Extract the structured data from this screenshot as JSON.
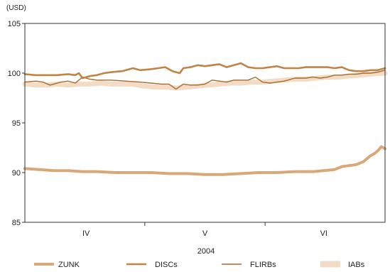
{
  "chart_data": {
    "type": "line",
    "unit_label": "(USD)",
    "xlabel": "2004",
    "ylim": [
      85,
      105
    ],
    "yticks": [
      85,
      90,
      95,
      100,
      105
    ],
    "grid": false,
    "legend_position": "bottom",
    "x_range": [
      0,
      100
    ],
    "months": [
      {
        "label": "IV",
        "center": 17
      },
      {
        "label": "V",
        "center": 50
      },
      {
        "label": "VI",
        "center": 83
      }
    ],
    "month_dividers": [
      33.3,
      66.7
    ],
    "series": [
      {
        "name": "ZUNK",
        "color": "#d9a878",
        "style": "thick",
        "x": [
          0,
          4,
          8,
          12,
          16,
          20,
          25,
          30,
          35,
          40,
          45,
          50,
          55,
          60,
          65,
          70,
          75,
          80,
          83,
          86,
          88,
          90,
          92,
          94,
          95,
          96,
          97,
          98,
          99,
          100
        ],
        "y": [
          90.4,
          90.3,
          90.2,
          90.2,
          90.1,
          90.1,
          90.0,
          90.0,
          90.0,
          89.9,
          89.9,
          89.8,
          89.8,
          89.9,
          90.0,
          90.0,
          90.1,
          90.1,
          90.2,
          90.3,
          90.6,
          90.7,
          90.8,
          91.1,
          91.4,
          91.7,
          91.9,
          92.2,
          92.6,
          92.4
        ]
      },
      {
        "name": "DISCs",
        "color": "#c08446",
        "style": "medium",
        "x": [
          0,
          3,
          6,
          9,
          12,
          14,
          15,
          16,
          18,
          20,
          22,
          24,
          27,
          30,
          32,
          35,
          37,
          39,
          41,
          43,
          44,
          46,
          48,
          50,
          52,
          54,
          56,
          58,
          60,
          62,
          64,
          66,
          68,
          70,
          72,
          74,
          76,
          78,
          80,
          82,
          84,
          86,
          88,
          90,
          92,
          94,
          96,
          98,
          100
        ],
        "y": [
          99.9,
          99.8,
          99.8,
          99.8,
          99.9,
          99.8,
          100.0,
          99.5,
          99.7,
          99.8,
          100.0,
          100.1,
          100.2,
          100.5,
          100.3,
          100.4,
          100.5,
          100.6,
          100.2,
          100.0,
          100.5,
          100.6,
          100.8,
          100.7,
          100.8,
          100.9,
          100.6,
          100.8,
          101.0,
          100.6,
          100.5,
          100.5,
          100.6,
          100.7,
          100.5,
          100.5,
          100.5,
          100.6,
          100.6,
          100.6,
          100.6,
          100.5,
          100.6,
          100.3,
          100.2,
          100.2,
          100.3,
          100.3,
          100.5
        ]
      },
      {
        "name": "FLIRBs",
        "color": "#a8692e",
        "style": "thin",
        "x": [
          0,
          3,
          5,
          7,
          10,
          12,
          14,
          16,
          18,
          20,
          24,
          28,
          32,
          35,
          38,
          40,
          42,
          44,
          46,
          48,
          50,
          52,
          54,
          56,
          58,
          60,
          62,
          64,
          66,
          68,
          70,
          72,
          75,
          78,
          80,
          82,
          84,
          86,
          88,
          90,
          92,
          94,
          96,
          98,
          100
        ],
        "y": [
          99.1,
          99.2,
          99.1,
          98.8,
          99.1,
          99.2,
          99.0,
          99.6,
          99.4,
          99.3,
          99.3,
          99.2,
          99.1,
          99.0,
          98.9,
          98.9,
          98.4,
          98.9,
          98.8,
          98.8,
          98.9,
          99.3,
          99.2,
          99.1,
          99.3,
          99.3,
          99.3,
          99.6,
          99.1,
          99.0,
          99.1,
          99.2,
          99.5,
          99.5,
          99.6,
          99.5,
          99.6,
          99.8,
          99.8,
          99.9,
          99.9,
          100.0,
          100.0,
          100.1,
          100.3
        ]
      },
      {
        "name": "IABs",
        "color": "#f2dcc5",
        "style": "band",
        "x": [
          0,
          3,
          6,
          9,
          12,
          15,
          18,
          21,
          24,
          27,
          30,
          33,
          36,
          39,
          42,
          45,
          48,
          51,
          54,
          57,
          60,
          63,
          66,
          69,
          72,
          75,
          78,
          81,
          84,
          87,
          90,
          93,
          96,
          100
        ],
        "y": [
          98.9,
          98.8,
          98.8,
          98.9,
          98.8,
          98.9,
          98.9,
          99.0,
          98.9,
          98.9,
          98.9,
          98.7,
          98.6,
          98.6,
          98.5,
          98.6,
          98.7,
          98.8,
          98.9,
          99.0,
          99.0,
          99.1,
          99.1,
          99.2,
          99.3,
          99.4,
          99.4,
          99.5,
          99.6,
          99.6,
          99.7,
          99.8,
          99.9,
          100.0
        ]
      }
    ]
  }
}
